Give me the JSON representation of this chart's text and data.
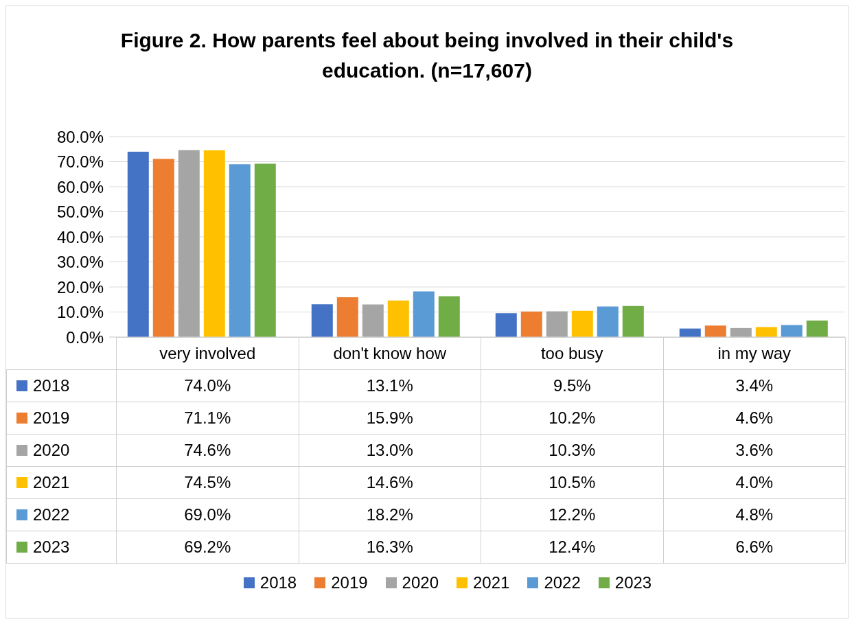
{
  "chart_data": {
    "type": "bar",
    "title": "Figure 2. How parents feel about being involved in their child's education. (n=17,607)",
    "categories": [
      "very involved",
      "don't know how",
      "too busy",
      "in my way"
    ],
    "series": [
      {
        "name": "2018",
        "color": "#4472c4",
        "values": [
          74.0,
          13.1,
          9.5,
          3.4
        ],
        "value_labels": [
          "74.0%",
          "13.1%",
          "9.5%",
          "3.4%"
        ]
      },
      {
        "name": "2019",
        "color": "#ed7d31",
        "values": [
          71.1,
          15.9,
          10.2,
          4.6
        ],
        "value_labels": [
          "71.1%",
          "15.9%",
          "10.2%",
          "4.6%"
        ]
      },
      {
        "name": "2020",
        "color": "#a5a5a5",
        "values": [
          74.6,
          13.0,
          10.3,
          3.6
        ],
        "value_labels": [
          "74.6%",
          "13.0%",
          "10.3%",
          "3.6%"
        ]
      },
      {
        "name": "2021",
        "color": "#ffc000",
        "values": [
          74.5,
          14.6,
          10.5,
          4.0
        ],
        "value_labels": [
          "74.5%",
          "14.6%",
          "10.5%",
          "4.0%"
        ]
      },
      {
        "name": "2022",
        "color": "#5b9bd5",
        "values": [
          69.0,
          18.2,
          12.2,
          4.8
        ],
        "value_labels": [
          "69.0%",
          "18.2%",
          "12.2%",
          "4.8%"
        ]
      },
      {
        "name": "2023",
        "color": "#70ad47",
        "values": [
          69.2,
          16.3,
          12.4,
          6.6
        ],
        "value_labels": [
          "69.2%",
          "16.3%",
          "12.4%",
          "6.6%"
        ]
      }
    ],
    "ylim": [
      0,
      80
    ],
    "yticks": [
      {
        "value": 0,
        "label": "0.0%"
      },
      {
        "value": 10,
        "label": "10.0%"
      },
      {
        "value": 20,
        "label": "20.0%"
      },
      {
        "value": 30,
        "label": "30.0%"
      },
      {
        "value": 40,
        "label": "40.0%"
      },
      {
        "value": 50,
        "label": "50.0%"
      },
      {
        "value": 60,
        "label": "60.0%"
      },
      {
        "value": 70,
        "label": "70.0%"
      },
      {
        "value": 80,
        "label": "80.0%"
      }
    ],
    "grid": "y",
    "legend": "bottom"
  }
}
